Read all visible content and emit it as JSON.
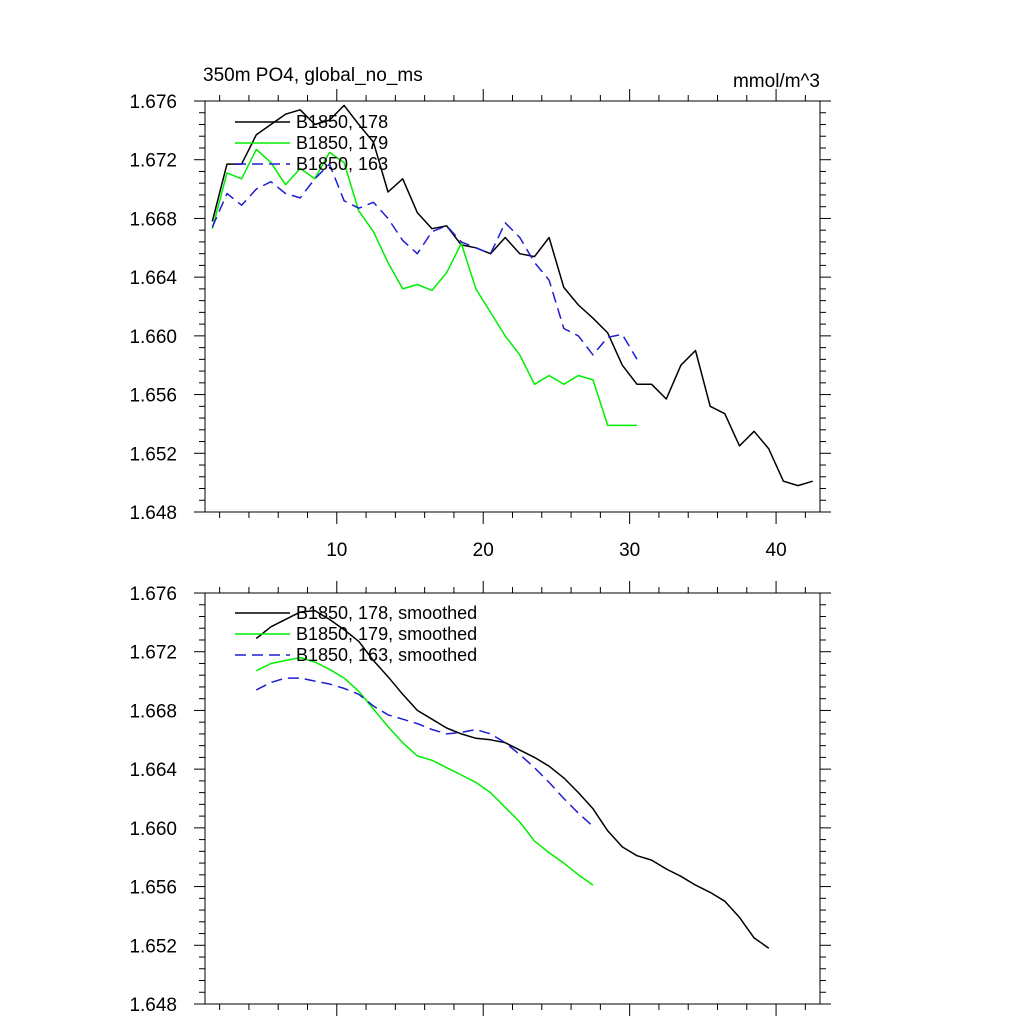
{
  "chart_data": [
    {
      "type": "line",
      "title": "350m PO4, global_no_ms",
      "units": "mmol/m^3",
      "xlim": [
        1,
        43
      ],
      "ylim": [
        1.648,
        1.676
      ],
      "yticks": [
        "1.648",
        "1.652",
        "1.656",
        "1.660",
        "1.664",
        "1.668",
        "1.672",
        "1.676"
      ],
      "xticks": [
        "10",
        "20",
        "30",
        "40"
      ],
      "legend_position": "top-left",
      "series": [
        {
          "name": "B1850, 178",
          "color": "#000000",
          "dash": "solid",
          "x": [
            1.5,
            2.5,
            3.5,
            4.5,
            5.5,
            6.5,
            7.5,
            8.5,
            9.5,
            10.5,
            11.5,
            12.5,
            13.5,
            14.5,
            15.5,
            16.5,
            17.5,
            18.5,
            19.5,
            20.5,
            21.5,
            22.5,
            23.5,
            24.5,
            25.5,
            26.5,
            27.5,
            28.5,
            29.5,
            30.5,
            31.5,
            32.5,
            33.5,
            34.5,
            35.5,
            36.5,
            37.5,
            38.5,
            39.5,
            40.5,
            41.5,
            42.5
          ],
          "y": [
            1.6678,
            1.6717,
            1.6717,
            1.6737,
            1.6744,
            1.6751,
            1.6754,
            1.6744,
            1.6747,
            1.6757,
            1.6744,
            1.6732,
            1.6698,
            1.6707,
            1.6684,
            1.6673,
            1.6675,
            1.6662,
            1.666,
            1.6656,
            1.6667,
            1.6656,
            1.6654,
            1.6667,
            1.6633,
            1.6621,
            1.6612,
            1.6602,
            1.658,
            1.6567,
            1.6567,
            1.6557,
            1.658,
            1.659,
            1.6552,
            1.6547,
            1.6525,
            1.6535,
            1.6523,
            1.6501,
            1.6498,
            1.6501
          ]
        },
        {
          "name": "B1850, 179",
          "color": "#00ee00",
          "dash": "solid",
          "x": [
            1.5,
            2.5,
            3.5,
            4.5,
            5.5,
            6.5,
            7.5,
            8.5,
            9.5,
            10.5,
            11.5,
            12.5,
            13.5,
            14.5,
            15.5,
            16.5,
            17.5,
            18.5,
            19.5,
            20.5,
            21.5,
            22.5,
            23.5,
            24.5,
            25.5,
            26.5,
            27.5,
            28.5,
            29.5,
            30.5
          ],
          "y": [
            1.6673,
            1.6711,
            1.6707,
            1.6727,
            1.6718,
            1.6703,
            1.6714,
            1.6707,
            1.6725,
            1.6718,
            1.6685,
            1.6671,
            1.665,
            1.6632,
            1.6635,
            1.6631,
            1.6643,
            1.6663,
            1.6632,
            1.6616,
            1.66,
            1.6587,
            1.6567,
            1.6573,
            1.6567,
            1.6573,
            1.657,
            1.6539,
            1.6539,
            1.6539
          ]
        },
        {
          "name": "B1850, 163",
          "color": "#1e1ed2",
          "dash": "dashed",
          "x": [
            1.5,
            2.5,
            3.5,
            4.5,
            5.5,
            6.5,
            7.5,
            8.5,
            9.5,
            10.5,
            11.5,
            12.5,
            13.5,
            14.5,
            15.5,
            16.5,
            17.5,
            18.5,
            19.5,
            20.5,
            21.5,
            22.5,
            23.5,
            24.5,
            25.5,
            26.5,
            27.5,
            28.5,
            29.5,
            30.5
          ],
          "y": [
            1.6674,
            1.6697,
            1.6689,
            1.67,
            1.6705,
            1.6697,
            1.6694,
            1.6707,
            1.6717,
            1.6692,
            1.6687,
            1.6691,
            1.668,
            1.6665,
            1.6656,
            1.6671,
            1.6675,
            1.6664,
            1.666,
            1.6656,
            1.6677,
            1.6667,
            1.665,
            1.6638,
            1.6605,
            1.66,
            1.6587,
            1.6599,
            1.6601,
            1.6584
          ]
        }
      ]
    },
    {
      "type": "line",
      "title": "",
      "xlim": [
        1,
        43
      ],
      "ylim": [
        1.648,
        1.676
      ],
      "yticks": [
        "1.648",
        "1.652",
        "1.656",
        "1.660",
        "1.664",
        "1.668",
        "1.672",
        "1.676"
      ],
      "legend_position": "top-left",
      "series": [
        {
          "name": "B1850, 178, smoothed",
          "color": "#000000",
          "dash": "solid",
          "x": [
            4.5,
            5.5,
            6.5,
            7.5,
            8.5,
            9.5,
            10.5,
            11.5,
            12.5,
            13.5,
            14.5,
            15.5,
            16.5,
            17.5,
            18.5,
            19.5,
            20.5,
            21.5,
            22.5,
            23.5,
            24.5,
            25.5,
            26.5,
            27.5,
            28.5,
            29.5,
            30.5,
            31.5,
            32.5,
            33.5,
            34.5,
            35.5,
            36.5,
            37.5,
            38.5,
            39.5
          ],
          "y": [
            1.6729,
            1.6737,
            1.6742,
            1.6747,
            1.6748,
            1.6742,
            1.6735,
            1.6727,
            1.6714,
            1.6703,
            1.6691,
            1.668,
            1.6674,
            1.6668,
            1.6664,
            1.6661,
            1.666,
            1.6658,
            1.6653,
            1.6648,
            1.6642,
            1.6634,
            1.6624,
            1.6613,
            1.6598,
            1.6587,
            1.6581,
            1.6578,
            1.6572,
            1.6567,
            1.6561,
            1.6556,
            1.655,
            1.6539,
            1.6525,
            1.6518
          ]
        },
        {
          "name": "B1850, 179, smoothed",
          "color": "#00ee00",
          "dash": "solid",
          "x": [
            4.5,
            5.5,
            6.5,
            7.5,
            8.5,
            9.5,
            10.5,
            11.5,
            12.5,
            13.5,
            14.5,
            15.5,
            16.5,
            17.5,
            18.5,
            19.5,
            20.5,
            21.5,
            22.5,
            23.5,
            24.5,
            25.5,
            26.5,
            27.5
          ],
          "y": [
            1.6707,
            1.6712,
            1.6714,
            1.6716,
            1.6713,
            1.6708,
            1.6702,
            1.6693,
            1.6681,
            1.6669,
            1.6658,
            1.6649,
            1.6646,
            1.6641,
            1.6636,
            1.6631,
            1.6624,
            1.6614,
            1.6604,
            1.6591,
            1.6583,
            1.6576,
            1.6568,
            1.6561
          ]
        },
        {
          "name": "B1850, 163, smoothed",
          "color": "#1e1ed2",
          "dash": "dashed",
          "x": [
            4.5,
            5.5,
            6.5,
            7.5,
            8.5,
            9.5,
            10.5,
            11.5,
            12.5,
            13.5,
            14.5,
            15.5,
            16.5,
            17.5,
            18.5,
            19.5,
            20.5,
            21.5,
            22.5,
            23.5,
            24.5,
            25.5,
            26.5,
            27.5
          ],
          "y": [
            1.6694,
            1.6699,
            1.6702,
            1.6702,
            1.67,
            1.6698,
            1.6695,
            1.6691,
            1.6683,
            1.6677,
            1.6674,
            1.6671,
            1.6667,
            1.6664,
            1.6665,
            1.6667,
            1.6664,
            1.6658,
            1.665,
            1.6641,
            1.6631,
            1.662,
            1.661,
            1.6601
          ]
        }
      ]
    }
  ]
}
